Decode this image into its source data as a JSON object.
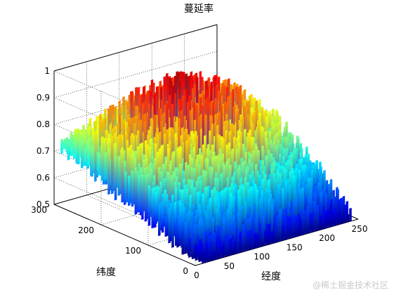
{
  "watermark": "@稀土掘金技术社区",
  "chart_data": {
    "type": "surface",
    "title": "蔓延率",
    "xlabel": "经度",
    "ylabel": "纬度",
    "zlabel": "",
    "x_ticks": [
      0,
      50,
      100,
      150,
      200,
      250
    ],
    "y_ticks": [
      0,
      100,
      200,
      300
    ],
    "z_ticks": [
      0.5,
      0.6,
      0.7,
      0.8,
      0.9,
      1
    ],
    "xlim": [
      0,
      250
    ],
    "ylim": [
      0,
      300
    ],
    "zlim": [
      0.5,
      1
    ],
    "colormap": "jet",
    "grid": true,
    "surface_profile": {
      "y_fraction": [
        0.0,
        0.1,
        0.2,
        0.3,
        0.4,
        0.5,
        0.6,
        0.7,
        0.8,
        0.9,
        1.0
      ],
      "z_min": [
        0.5,
        0.52,
        0.55,
        0.58,
        0.6,
        0.62,
        0.64,
        0.66,
        0.68,
        0.7,
        0.71
      ],
      "z_max": [
        0.62,
        0.7,
        0.76,
        0.82,
        0.88,
        0.93,
        0.97,
        0.98,
        0.95,
        0.88,
        0.78
      ]
    },
    "colors": {
      "jet": [
        "#00008f",
        "#0000ff",
        "#00ffff",
        "#ffff00",
        "#ff0000",
        "#800000"
      ]
    }
  }
}
